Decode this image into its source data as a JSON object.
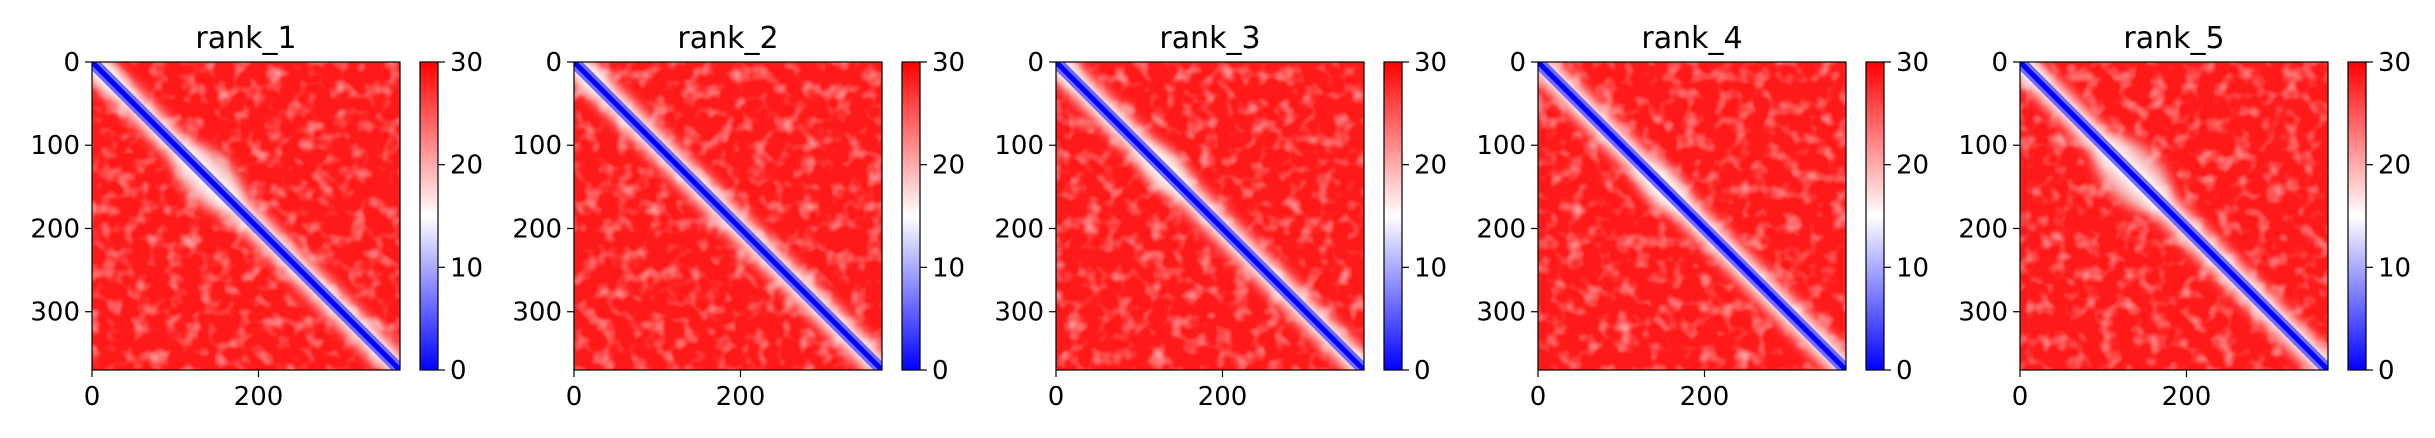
{
  "chart_data": [
    {
      "type": "heatmap",
      "title": "rank_1",
      "matrix_size": 370,
      "x_ticks": [
        0,
        200
      ],
      "y_ticks": [
        0,
        100,
        200,
        300
      ],
      "colorbar": {
        "min": 0,
        "max": 30,
        "ticks": [
          0,
          10,
          20,
          30
        ],
        "colormap": [
          "#0000ff",
          "#ffffff",
          "#ff0000"
        ]
      },
      "patterns": {
        "diagonal": "low values (blue) along the main diagonal",
        "low_regions": [
          [
            0,
            40
          ],
          [
            100,
            180
          ]
        ]
      }
    },
    {
      "type": "heatmap",
      "title": "rank_2",
      "matrix_size": 370,
      "x_ticks": [
        0,
        200
      ],
      "y_ticks": [
        0,
        100,
        200,
        300
      ],
      "colorbar": {
        "min": 0,
        "max": 30,
        "ticks": [
          0,
          10,
          20,
          30
        ],
        "colormap": [
          "#0000ff",
          "#ffffff",
          "#ff0000"
        ]
      },
      "patterns": {
        "diagonal": "low values (blue) along the main diagonal",
        "low_regions": [
          [
            0,
            40
          ]
        ]
      }
    },
    {
      "type": "heatmap",
      "title": "rank_3",
      "matrix_size": 370,
      "x_ticks": [
        0,
        200
      ],
      "y_ticks": [
        0,
        100,
        200,
        300
      ],
      "colorbar": {
        "min": 0,
        "max": 30,
        "ticks": [
          0,
          10,
          20,
          30
        ],
        "colormap": [
          "#0000ff",
          "#ffffff",
          "#ff0000"
        ]
      },
      "patterns": {
        "diagonal": "low values (blue) along the main diagonal",
        "low_regions": [
          [
            0,
            30
          ],
          [
            100,
            160
          ]
        ]
      }
    },
    {
      "type": "heatmap",
      "title": "rank_4",
      "matrix_size": 370,
      "x_ticks": [
        0,
        200
      ],
      "y_ticks": [
        0,
        100,
        200,
        300
      ],
      "colorbar": {
        "min": 0,
        "max": 30,
        "ticks": [
          0,
          10,
          20,
          30
        ],
        "colormap": [
          "#0000ff",
          "#ffffff",
          "#ff0000"
        ]
      },
      "patterns": {
        "diagonal": "low values (blue) along the main diagonal",
        "low_regions": [
          [
            120,
            180
          ]
        ]
      }
    },
    {
      "type": "heatmap",
      "title": "rank_5",
      "matrix_size": 370,
      "x_ticks": [
        0,
        200
      ],
      "y_ticks": [
        0,
        100,
        200,
        300
      ],
      "colorbar": {
        "min": 0,
        "max": 30,
        "ticks": [
          0,
          10,
          20,
          30
        ],
        "colormap": [
          "#0000ff",
          "#ffffff",
          "#ff0000"
        ]
      },
      "patterns": {
        "diagonal": "low values (blue) along the main diagonal",
        "low_regions": [
          [
            0,
            30
          ],
          [
            90,
            180
          ]
        ]
      }
    }
  ]
}
